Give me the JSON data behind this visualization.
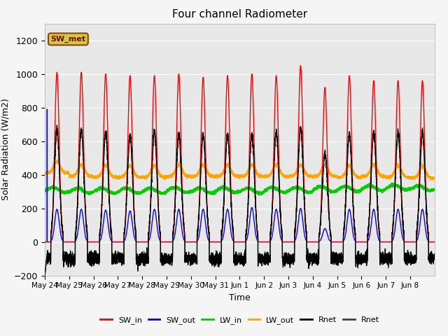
{
  "title": "Four channel Radiometer",
  "xlabel": "Time",
  "ylabel": "Solar Radiation (W/m2)",
  "ylim": [
    -200,
    1300
  ],
  "yticks": [
    -200,
    0,
    200,
    400,
    600,
    800,
    1000,
    1200
  ],
  "x_labels": [
    "May 24",
    "May 25",
    "May 26",
    "May 27",
    "May 28",
    "May 29",
    "May 30",
    "May 31",
    "Jun 1",
    "Jun 2",
    "Jun 3",
    "Jun 4",
    "Jun 5",
    "Jun 6",
    "Jun 7",
    "Jun 8"
  ],
  "n_days": 16,
  "pts_per_day": 288,
  "SW_in_peaks": [
    1010,
    1010,
    1000,
    990,
    990,
    1000,
    980,
    990,
    1000,
    990,
    1050,
    920,
    990,
    960,
    960,
    960
  ],
  "SW_out_peaks": [
    195,
    195,
    190,
    185,
    195,
    195,
    195,
    195,
    205,
    195,
    200,
    80,
    195,
    195,
    195,
    195
  ],
  "LW_in_vals": [
    310,
    305,
    305,
    305,
    305,
    310,
    305,
    310,
    305,
    310,
    310,
    315,
    315,
    320,
    325,
    320
  ],
  "LW_out_vals": [
    410,
    390,
    385,
    385,
    385,
    390,
    390,
    390,
    390,
    390,
    390,
    390,
    385,
    390,
    385,
    380
  ],
  "Rnet_day_peaks": [
    670,
    670,
    650,
    635,
    660,
    640,
    640,
    640,
    640,
    650,
    680,
    530,
    640,
    650,
    650,
    650
  ],
  "Rnet_night": -100,
  "first_day_blue_spike": 790,
  "bg_color": "#f5f5f5",
  "plot_bg": "#e8e8e8",
  "colors": {
    "SW_in": "#ff0000",
    "SW_out": "#0000ff",
    "LW_in": "#00cc00",
    "LW_out": "#ffa500",
    "Rnet": "#000000",
    "Rnet2": "#404040"
  },
  "legend_label": "SW_met",
  "legend_box_facecolor": "#cccc44",
  "legend_box_edge": "#8B4513"
}
